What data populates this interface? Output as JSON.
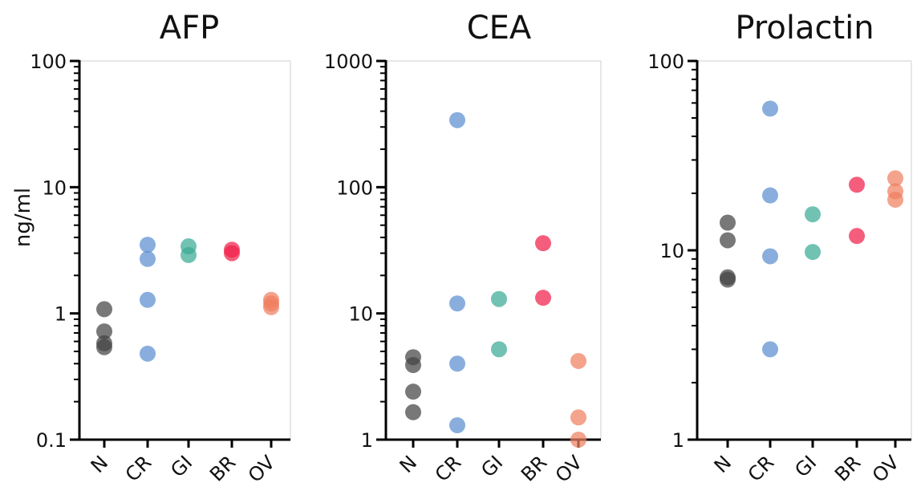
{
  "chart_data": [
    {
      "type": "scatter",
      "title": "AFP",
      "ylabel": "ng/ml",
      "yscale": "log",
      "ylim": [
        0.1,
        100
      ],
      "yticks": [
        "0.1",
        "1",
        "10",
        "100"
      ],
      "categories": [
        "N",
        "CR",
        "GI",
        "BR",
        "OV"
      ],
      "colors": [
        "#444444",
        "#5b8fd0",
        "#3aaa94",
        "#f0204a",
        "#f08060"
      ],
      "series": [
        {
          "category": "N",
          "values": [
            1.08,
            0.72,
            0.58,
            0.54
          ]
        },
        {
          "category": "CR",
          "values": [
            3.5,
            2.7,
            1.28,
            0.48
          ]
        },
        {
          "category": "GI",
          "values": [
            3.4,
            2.9
          ]
        },
        {
          "category": "BR",
          "values": [
            3.2,
            3.0
          ]
        },
        {
          "category": "OV",
          "values": [
            1.28,
            1.2,
            1.12
          ]
        }
      ]
    },
    {
      "type": "scatter",
      "title": "CEA",
      "ylabel": "",
      "yscale": "log",
      "ylim": [
        1,
        1000
      ],
      "yticks": [
        "1",
        "10",
        "100",
        "1000"
      ],
      "categories": [
        "N",
        "CR",
        "GI",
        "BR",
        "OV"
      ],
      "colors": [
        "#444444",
        "#5b8fd0",
        "#3aaa94",
        "#f0204a",
        "#f08060"
      ],
      "series": [
        {
          "category": "N",
          "values": [
            4.5,
            3.9,
            2.4,
            1.65
          ]
        },
        {
          "category": "CR",
          "values": [
            340,
            12,
            4.0,
            1.3
          ]
        },
        {
          "category": "GI",
          "values": [
            13,
            5.2
          ]
        },
        {
          "category": "BR",
          "values": [
            36,
            13.3
          ]
        },
        {
          "category": "OV",
          "values": [
            4.2,
            1.5,
            1.0
          ]
        }
      ]
    },
    {
      "type": "scatter",
      "title": "Prolactin",
      "ylabel": "",
      "yscale": "log",
      "ylim": [
        1,
        100
      ],
      "yticks": [
        "1",
        "10",
        "100"
      ],
      "categories": [
        "N",
        "CR",
        "GI",
        "BR",
        "OV"
      ],
      "colors": [
        "#444444",
        "#5b8fd0",
        "#3aaa94",
        "#f0204a",
        "#f08060"
      ],
      "series": [
        {
          "category": "N",
          "values": [
            14,
            11.3,
            7.2,
            7.0
          ]
        },
        {
          "category": "CR",
          "values": [
            56,
            19.5,
            9.3,
            3.0
          ]
        },
        {
          "category": "GI",
          "values": [
            15.5,
            9.8
          ]
        },
        {
          "category": "BR",
          "values": [
            22.2,
            11.9
          ]
        },
        {
          "category": "OV",
          "values": [
            24,
            20.5,
            18.5
          ]
        }
      ]
    }
  ]
}
